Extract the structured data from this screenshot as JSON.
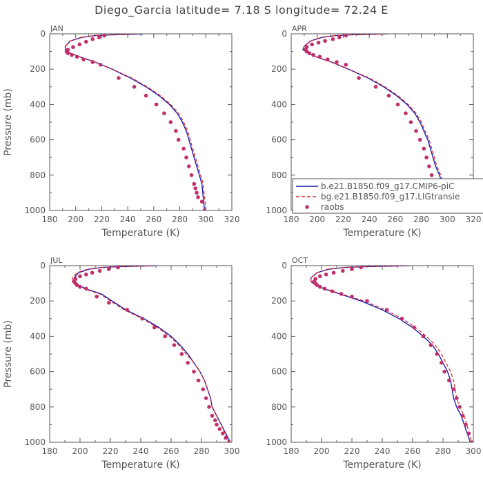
{
  "title": "Diego_Garcia   latitude= 7.18 S longitude= 72.24 E",
  "legend": {
    "series1": "b.e21.B1850.f09_g17.CMIP6-piC",
    "series2": "bg.e21.B1850.f09_g17.LIGtransie",
    "obs": "raobs"
  },
  "colors": {
    "series1": "#1a1aaa",
    "series2": "#e0202a",
    "obs": "#c0306a",
    "axis": "#555555"
  },
  "chart_data": [
    {
      "type": "line",
      "panel": "JAN",
      "xlabel": "Temperature (K)",
      "ylabel": "Pressure (mb)",
      "xlim": [
        180,
        320
      ],
      "ylim": [
        1000,
        0
      ],
      "y_inverted": true,
      "xticks": [
        "180",
        "200",
        "220",
        "240",
        "260",
        "280",
        "300",
        "320"
      ],
      "yticks": [
        "0",
        "200",
        "400",
        "600",
        "800",
        "1000"
      ],
      "legend_shown": false,
      "series": [
        {
          "name": "b.e21.B1850.f09_g17.CMIP6-piC",
          "x": [
            252,
            240,
            230,
            215,
            205,
            196,
            192,
            192,
            196,
            205,
            215,
            228,
            242,
            254,
            264,
            272,
            278,
            282,
            285,
            287,
            289,
            291,
            293,
            295,
            297,
            299
          ],
          "y": [
            0,
            3,
            5,
            10,
            20,
            40,
            70,
            90,
            110,
            135,
            160,
            200,
            250,
            300,
            350,
            400,
            450,
            500,
            550,
            600,
            650,
            700,
            750,
            800,
            850,
            1000
          ]
        },
        {
          "name": "bg.e21.B1850.f09_g17.LIGtransie",
          "x": [
            248,
            238,
            228,
            214,
            204,
            196,
            192,
            192,
            196,
            205,
            215,
            228,
            243,
            255,
            265,
            273,
            279,
            283,
            286,
            288,
            290,
            292,
            294,
            296,
            298,
            300
          ],
          "y": [
            0,
            3,
            5,
            10,
            20,
            40,
            70,
            90,
            110,
            135,
            160,
            200,
            250,
            300,
            350,
            400,
            450,
            500,
            550,
            600,
            650,
            700,
            750,
            800,
            850,
            1000
          ]
        },
        {
          "name": "raobs",
          "x": [
            222,
            218,
            213,
            208,
            203,
            198,
            194,
            193,
            194,
            197,
            201,
            206,
            213,
            219,
            233,
            245,
            254,
            262,
            268,
            273,
            277,
            279,
            283,
            285,
            287,
            289,
            291,
            292,
            293,
            294,
            297,
            299
          ],
          "y": [
            10,
            20,
            30,
            45,
            60,
            75,
            90,
            100,
            110,
            120,
            130,
            145,
            160,
            175,
            250,
            300,
            350,
            400,
            450,
            500,
            550,
            600,
            650,
            700,
            750,
            800,
            850,
            875,
            900,
            925,
            950,
            1000
          ]
        }
      ]
    },
    {
      "type": "line",
      "panel": "APR",
      "xlabel": "Temperature (K)",
      "ylabel": "",
      "xlim": [
        180,
        320
      ],
      "ylim": [
        1000,
        0
      ],
      "y_inverted": true,
      "xticks": [
        "180",
        "200",
        "220",
        "240",
        "260",
        "280",
        "300",
        "320"
      ],
      "yticks": [
        "0",
        "200",
        "400",
        "600",
        "800",
        "1000"
      ],
      "legend_shown": true,
      "legend_position": "bottom-right",
      "series": [
        {
          "name": "b.e21.B1850.f09_g17.CMIP6-piC",
          "x": [
            254,
            240,
            228,
            214,
            204,
            195,
            190,
            189,
            193,
            201,
            211,
            224,
            239,
            251,
            261,
            269,
            275,
            279,
            282,
            285,
            287,
            289,
            291,
            294,
            296,
            300
          ],
          "y": [
            0,
            3,
            5,
            10,
            20,
            40,
            70,
            90,
            110,
            135,
            160,
            200,
            250,
            300,
            350,
            400,
            450,
            500,
            550,
            600,
            650,
            700,
            750,
            800,
            850,
            1000
          ]
        },
        {
          "name": "bg.e21.B1850.f09_g17.LIGtransie",
          "x": [
            252,
            239,
            227,
            213,
            203,
            195,
            190,
            189,
            193,
            201,
            211,
            224,
            240,
            252,
            262,
            270,
            276,
            280,
            283,
            286,
            288,
            290,
            292,
            295,
            297,
            301
          ],
          "y": [
            0,
            3,
            5,
            10,
            20,
            40,
            70,
            90,
            110,
            135,
            160,
            200,
            250,
            300,
            350,
            400,
            450,
            500,
            550,
            600,
            650,
            700,
            750,
            800,
            850,
            1000
          ]
        },
        {
          "name": "raobs",
          "x": [
            222,
            217,
            212,
            206,
            201,
            196,
            192,
            191,
            192,
            194,
            197,
            202,
            208,
            215,
            222,
            232,
            245,
            255,
            262,
            268,
            272,
            276,
            279,
            282,
            284,
            286,
            288,
            290,
            292,
            296,
            300
          ],
          "y": [
            10,
            20,
            30,
            40,
            50,
            60,
            75,
            90,
            100,
            110,
            120,
            130,
            145,
            160,
            175,
            250,
            300,
            350,
            400,
            450,
            500,
            550,
            600,
            650,
            700,
            750,
            800,
            850,
            900,
            950,
            1000
          ]
        }
      ]
    },
    {
      "type": "line",
      "panel": "JUL",
      "xlabel": "Temperature (K)",
      "ylabel": "Pressure (mb)",
      "xlim": [
        180,
        300
      ],
      "ylim": [
        1000,
        0
      ],
      "y_inverted": true,
      "xticks": [
        "180",
        "200",
        "220",
        "240",
        "260",
        "280",
        "300"
      ],
      "yticks": [
        "0",
        "200",
        "400",
        "600",
        "800",
        "1000"
      ],
      "legend_shown": false,
      "series": [
        {
          "name": "b.e21.B1850.f09_g17.CMIP6-piC",
          "x": [
            250,
            238,
            228,
            215,
            206,
            199,
            196,
            196,
            199,
            205,
            214,
            230,
            242,
            252,
            260,
            266,
            271,
            275,
            279,
            282,
            284,
            286,
            287,
            290,
            293,
            299
          ],
          "y": [
            0,
            3,
            5,
            10,
            20,
            40,
            70,
            90,
            110,
            135,
            160,
            250,
            300,
            350,
            400,
            450,
            500,
            550,
            600,
            650,
            700,
            750,
            800,
            850,
            900,
            1000
          ]
        },
        {
          "name": "bg.e21.B1850.f09_g17.LIGtransie",
          "x": [
            248,
            237,
            227,
            214,
            205,
            198,
            195,
            195,
            198,
            204,
            213,
            229,
            241,
            251,
            259,
            265,
            270,
            275,
            279,
            282,
            284,
            286,
            287,
            290,
            293,
            298
          ],
          "y": [
            0,
            3,
            5,
            10,
            20,
            40,
            70,
            90,
            110,
            135,
            160,
            250,
            300,
            350,
            400,
            450,
            500,
            550,
            600,
            650,
            700,
            750,
            800,
            850,
            900,
            1000
          ]
        },
        {
          "name": "raobs",
          "x": [
            225,
            219,
            213,
            208,
            204,
            200,
            197,
            196,
            197,
            198,
            200,
            204,
            211,
            219,
            231,
            241,
            249,
            256,
            262,
            267,
            271,
            275,
            278,
            281,
            283,
            285,
            287,
            289,
            290,
            292,
            294,
            296,
            298
          ],
          "y": [
            10,
            20,
            30,
            40,
            50,
            60,
            75,
            90,
            100,
            110,
            120,
            130,
            175,
            210,
            250,
            300,
            350,
            400,
            450,
            500,
            550,
            600,
            650,
            700,
            750,
            800,
            850,
            875,
            900,
            925,
            950,
            975,
            1000
          ]
        }
      ]
    },
    {
      "type": "line",
      "panel": "OCT",
      "xlabel": "Temperature (K)",
      "ylabel": "",
      "xlim": [
        180,
        300
      ],
      "ylim": [
        1000,
        0
      ],
      "y_inverted": true,
      "xticks": [
        "180",
        "200",
        "220",
        "240",
        "260",
        "280",
        "300"
      ],
      "yticks": [
        "0",
        "200",
        "400",
        "600",
        "800",
        "1000"
      ],
      "legend_shown": false,
      "series": [
        {
          "name": "b.e21.B1850.f09_g17.CMIP6-piC",
          "x": [
            258,
            244,
            231,
            216,
            205,
            197,
            193,
            193,
            196,
            203,
            212,
            226,
            240,
            251,
            260,
            267,
            273,
            277,
            280,
            283,
            285,
            286,
            287,
            289,
            292,
            298
          ],
          "y": [
            0,
            3,
            5,
            10,
            20,
            40,
            70,
            90,
            110,
            135,
            160,
            200,
            250,
            300,
            350,
            400,
            450,
            500,
            550,
            600,
            650,
            700,
            750,
            800,
            850,
            1000
          ]
        },
        {
          "name": "bg.e21.B1850.f09_g17.LIGtransie",
          "x": [
            256,
            243,
            230,
            215,
            204,
            197,
            193,
            193,
            196,
            204,
            213,
            228,
            242,
            253,
            262,
            269,
            275,
            279,
            282,
            285,
            287,
            288,
            289,
            291,
            294,
            299
          ],
          "y": [
            0,
            3,
            5,
            10,
            20,
            40,
            70,
            90,
            110,
            135,
            160,
            200,
            250,
            300,
            350,
            400,
            450,
            500,
            550,
            600,
            650,
            700,
            750,
            800,
            850,
            1000
          ]
        },
        {
          "name": "raobs",
          "x": [
            226,
            220,
            214,
            208,
            203,
            199,
            196,
            195,
            196,
            197,
            199,
            202,
            207,
            213,
            220,
            230,
            243,
            253,
            261,
            267,
            272,
            276,
            279,
            281,
            284,
            287,
            289,
            291,
            293,
            295,
            297,
            299
          ],
          "y": [
            10,
            20,
            30,
            40,
            50,
            60,
            75,
            90,
            100,
            110,
            120,
            130,
            145,
            160,
            175,
            200,
            250,
            300,
            350,
            400,
            450,
            500,
            550,
            600,
            650,
            700,
            750,
            800,
            850,
            900,
            950,
            1000
          ]
        }
      ]
    }
  ]
}
